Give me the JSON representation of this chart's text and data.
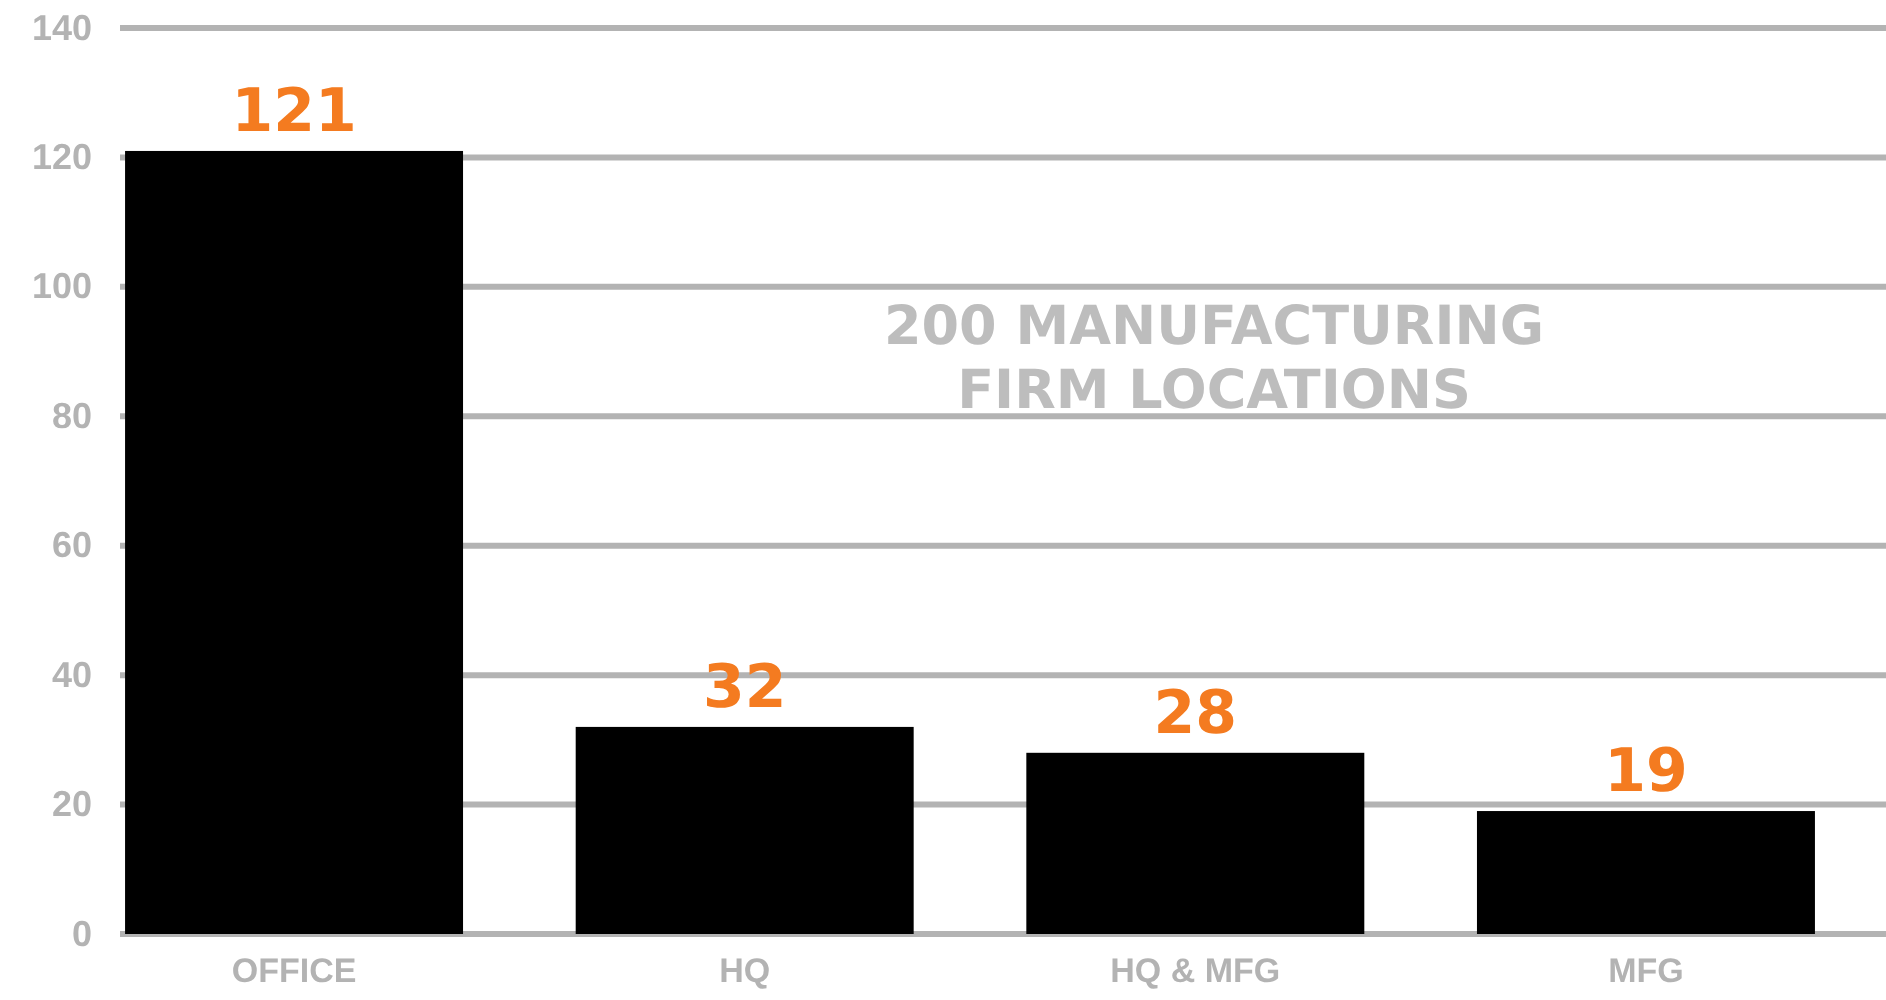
{
  "chart_data": {
    "type": "bar",
    "title": "200 MANUFACTURING FIRM LOCATIONS",
    "categories": [
      "OFFICE",
      "HQ",
      "HQ & MFG",
      "MFG"
    ],
    "values": [
      121,
      32,
      28,
      19
    ],
    "color": "#000000",
    "ylim": [
      0,
      140
    ],
    "yticks": [
      0,
      20,
      40,
      60,
      80,
      100,
      120,
      140
    ],
    "grid": "y",
    "data_labels": true
  }
}
